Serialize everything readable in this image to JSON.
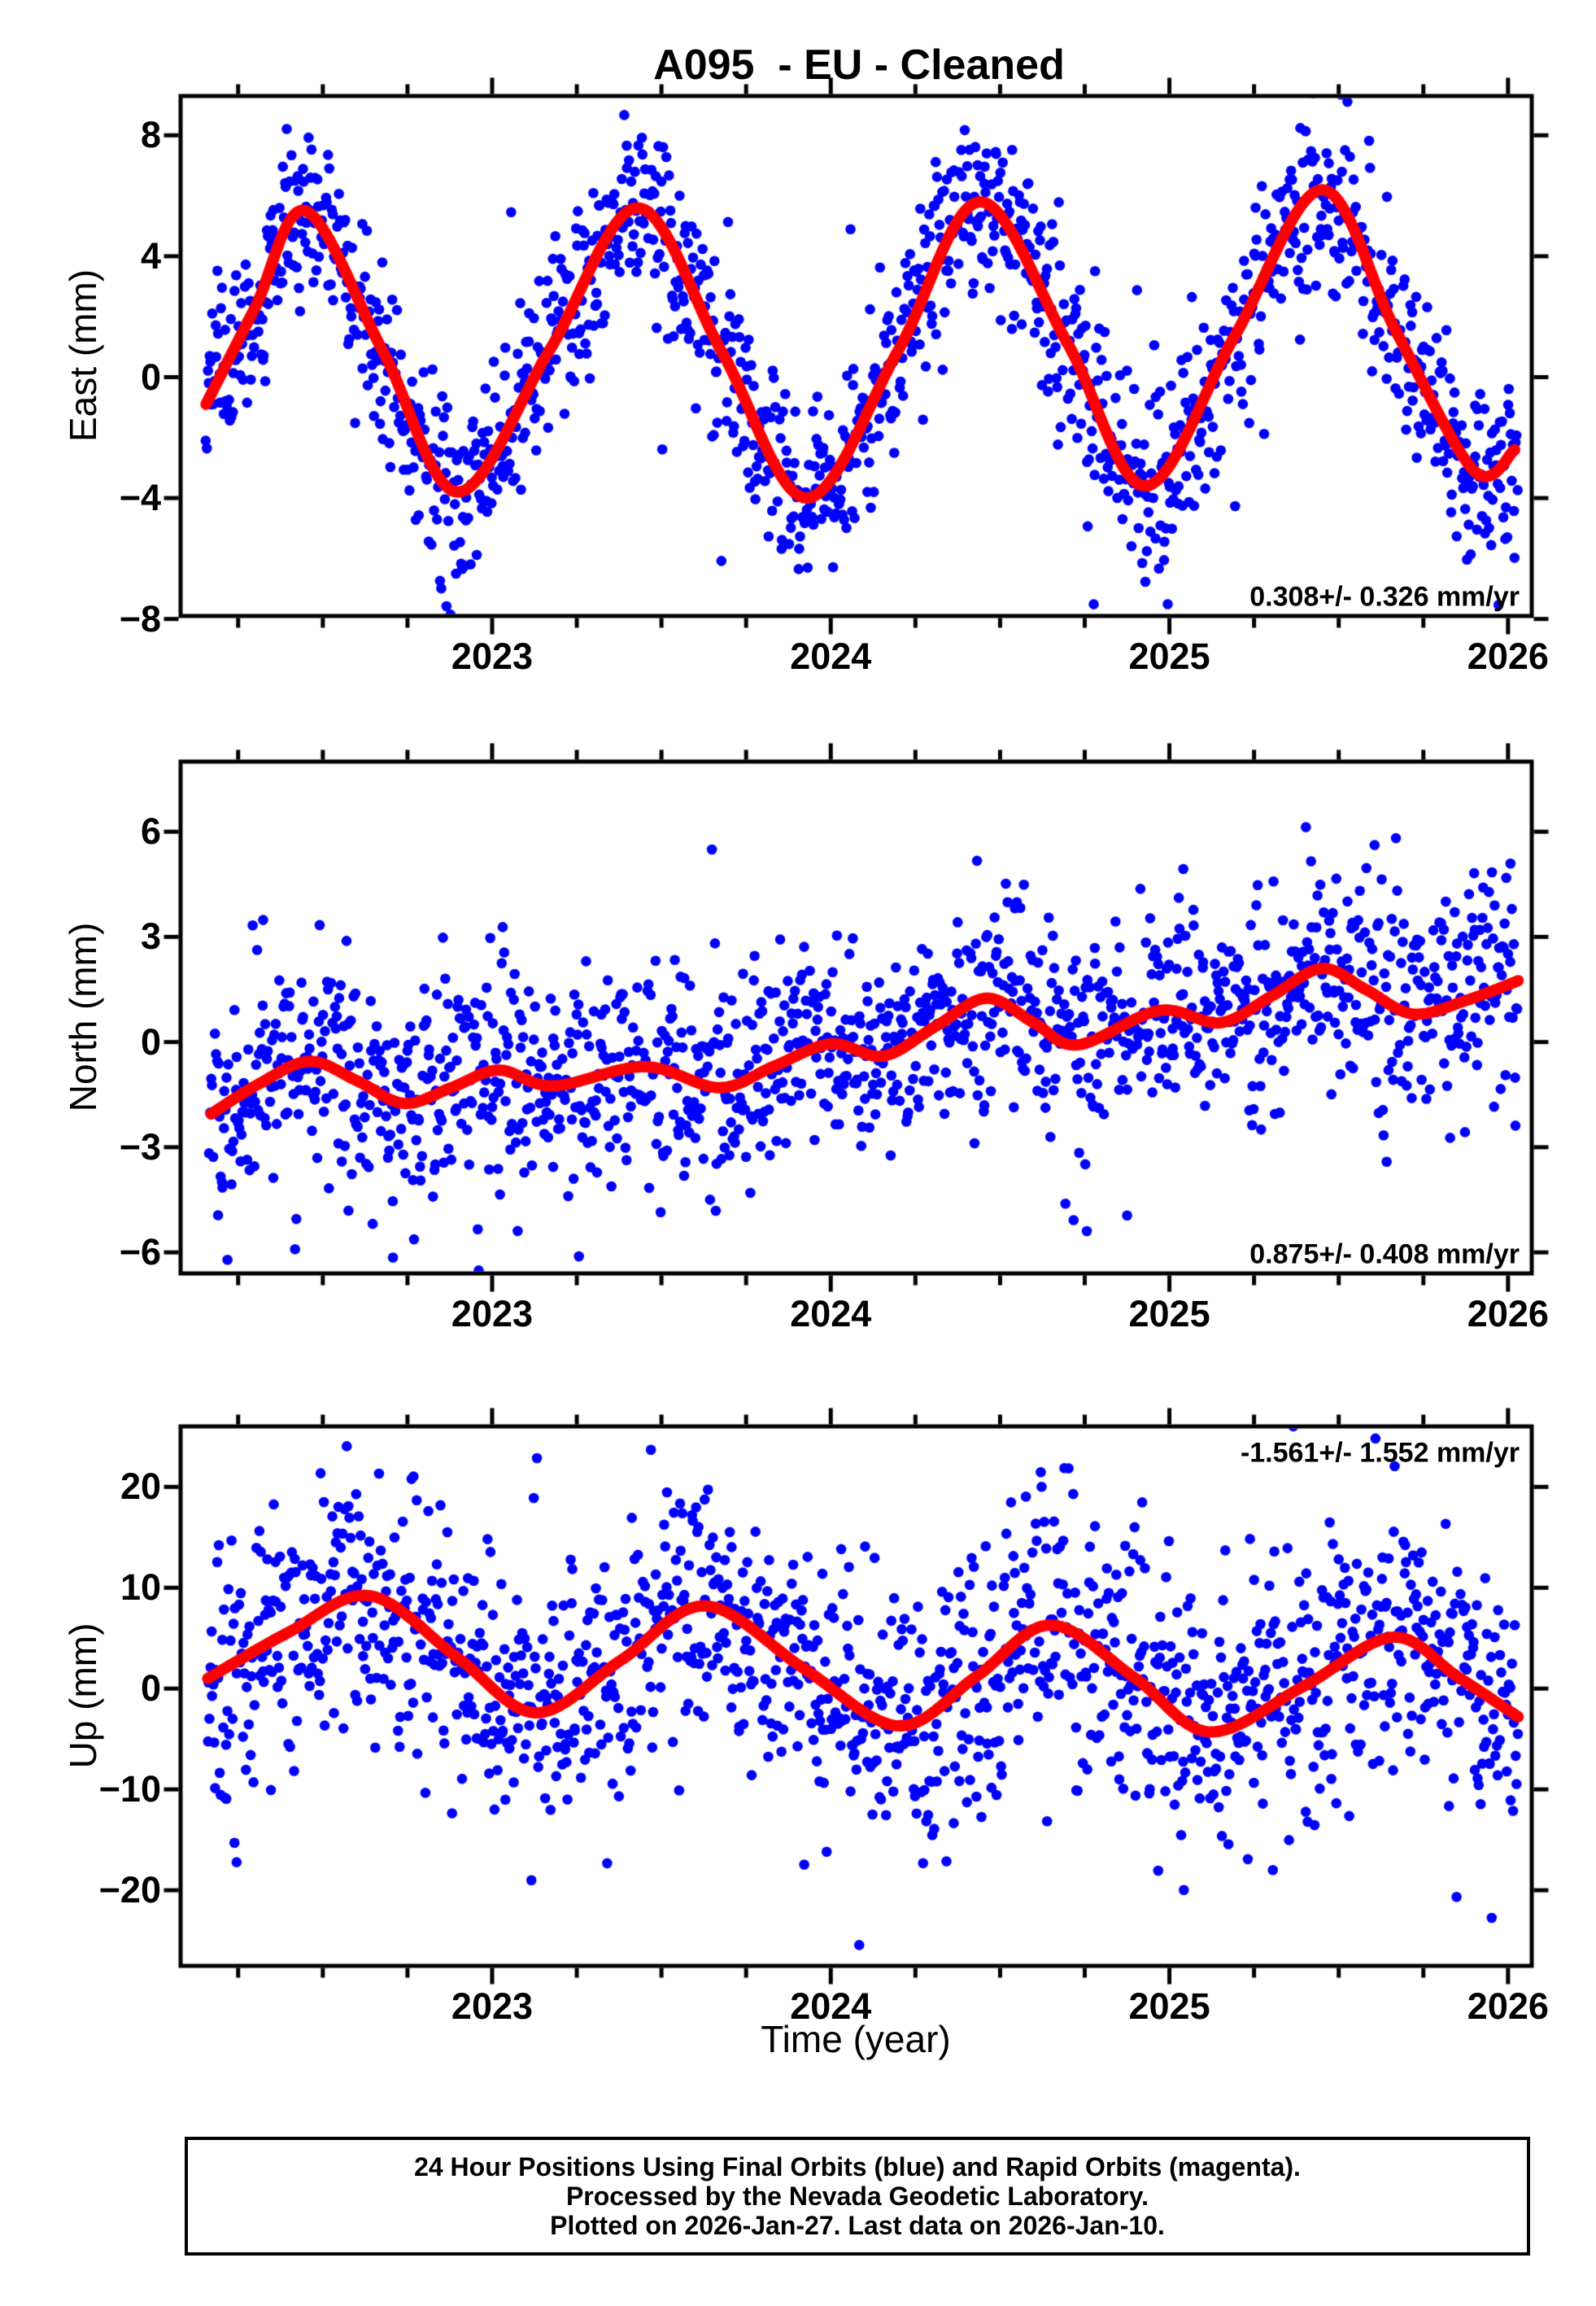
{
  "title": "A095  - EU - Cleaned",
  "xlabel": "Time (year)",
  "footer": {
    "lines": [
      "24 Hour Positions Using Final Orbits (blue) and Rapid Orbits (magenta).",
      "Processed by the Nevada Geodetic Laboratory.",
      "Plotted on 2026-Jan-27. Last data on 2026-Jan-10."
    ]
  },
  "colors": {
    "final_orbit_points": "#0000ff",
    "model_curve": "#ff0000",
    "axes_and_text": "#000000",
    "background": "#ffffff"
  },
  "chart_data": [
    {
      "type": "scatter",
      "component": "east",
      "ylabel": "East (mm)",
      "annotation": "0.308+/- 0.326 mm/yr",
      "annotation_corner": "bottom-right",
      "trend_mm_per_yr": 0.308,
      "trend_sigma_mm_per_yr": 0.326,
      "xlim": [
        2022.08,
        2026.07
      ],
      "xticks": [
        2023,
        2024,
        2025,
        2026
      ],
      "x_minor_interval": 0.25,
      "ylim": [
        -7.9,
        9.3
      ],
      "yticks": [
        -8,
        -4,
        0,
        4,
        8
      ],
      "model_curve_points": [
        [
          2022.155,
          -0.9
        ],
        [
          2022.3,
          2.3
        ],
        [
          2022.45,
          5.5
        ],
        [
          2022.68,
          0.8
        ],
        [
          2022.9,
          -3.8
        ],
        [
          2023.17,
          0.9
        ],
        [
          2023.43,
          5.6
        ],
        [
          2023.68,
          0.8
        ],
        [
          2023.93,
          -4.0
        ],
        [
          2024.2,
          0.9
        ],
        [
          2024.44,
          5.8
        ],
        [
          2024.7,
          1.1
        ],
        [
          2024.93,
          -3.6
        ],
        [
          2025.19,
          1.3
        ],
        [
          2025.45,
          6.2
        ],
        [
          2025.67,
          1.5
        ],
        [
          2025.9,
          -3.1
        ],
        [
          2026.02,
          -2.4
        ]
      ],
      "scatter": {
        "n": 1380,
        "x_start": 2022.155,
        "x_end": 2026.028,
        "noise_sigma_mm": 1.55,
        "outlier_fraction": 0.035,
        "outlier_scale": 2.3,
        "seed": 101
      }
    },
    {
      "type": "scatter",
      "component": "north",
      "ylabel": "North (mm)",
      "annotation": "0.875+/- 0.408 mm/yr",
      "annotation_corner": "bottom-right",
      "trend_mm_per_yr": 0.875,
      "trend_sigma_mm_per_yr": 0.408,
      "xlim": [
        2022.08,
        2026.07
      ],
      "xticks": [
        2023,
        2024,
        2025,
        2026
      ],
      "x_minor_interval": 0.25,
      "ylim": [
        -6.6,
        8.0
      ],
      "yticks": [
        -6,
        -3,
        0,
        3,
        6
      ],
      "model_curve_points": [
        [
          2022.17,
          -2.05
        ],
        [
          2022.31,
          -1.2
        ],
        [
          2022.46,
          -0.55
        ],
        [
          2022.6,
          -1.1
        ],
        [
          2022.74,
          -1.75
        ],
        [
          2022.88,
          -1.3
        ],
        [
          2023.02,
          -0.8
        ],
        [
          2023.18,
          -1.25
        ],
        [
          2023.45,
          -0.7
        ],
        [
          2023.67,
          -1.3
        ],
        [
          2023.83,
          -0.7
        ],
        [
          2024.0,
          -0.05
        ],
        [
          2024.155,
          -0.4
        ],
        [
          2024.31,
          0.45
        ],
        [
          2024.46,
          1.25
        ],
        [
          2024.6,
          0.55
        ],
        [
          2024.73,
          -0.08
        ],
        [
          2024.97,
          0.9
        ],
        [
          2025.15,
          0.55
        ],
        [
          2025.3,
          1.3
        ],
        [
          2025.45,
          2.1
        ],
        [
          2025.58,
          1.5
        ],
        [
          2025.72,
          0.8
        ],
        [
          2025.88,
          1.2
        ],
        [
          2026.03,
          1.75
        ]
      ],
      "scatter": {
        "n": 1380,
        "x_start": 2022.165,
        "x_end": 2026.028,
        "noise_sigma_mm": 1.6,
        "outlier_fraction": 0.03,
        "outlier_scale": 2.2,
        "seed": 202
      }
    },
    {
      "type": "scatter",
      "component": "up",
      "ylabel": "Up (mm)",
      "annotation": "-1.561+/- 1.552 mm/yr",
      "annotation_corner": "top-right",
      "trend_mm_per_yr": -1.561,
      "trend_sigma_mm_per_yr": 1.552,
      "xlim": [
        2022.08,
        2026.07
      ],
      "xticks": [
        2023,
        2024,
        2025,
        2026
      ],
      "x_minor_interval": 0.25,
      "ylim": [
        -27.5,
        26.0
      ],
      "yticks": [
        -20,
        -10,
        0,
        10,
        20
      ],
      "model_curve_points": [
        [
          2022.16,
          1.0
        ],
        [
          2022.4,
          5.6
        ],
        [
          2022.64,
          9.2
        ],
        [
          2022.9,
          3.0
        ],
        [
          2023.13,
          -2.4
        ],
        [
          2023.38,
          2.8
        ],
        [
          2023.63,
          8.2
        ],
        [
          2023.92,
          2.0
        ],
        [
          2024.2,
          -3.7
        ],
        [
          2024.43,
          1.2
        ],
        [
          2024.65,
          6.3
        ],
        [
          2024.9,
          1.0
        ],
        [
          2025.12,
          -4.3
        ],
        [
          2025.4,
          0.3
        ],
        [
          2025.66,
          5.1
        ],
        [
          2025.85,
          1.2
        ],
        [
          2026.03,
          -2.8
        ]
      ],
      "scatter": {
        "n": 1380,
        "x_start": 2022.16,
        "x_end": 2026.028,
        "noise_sigma_mm": 6.8,
        "outlier_fraction": 0.03,
        "outlier_scale": 2.2,
        "seed": 303
      }
    }
  ]
}
